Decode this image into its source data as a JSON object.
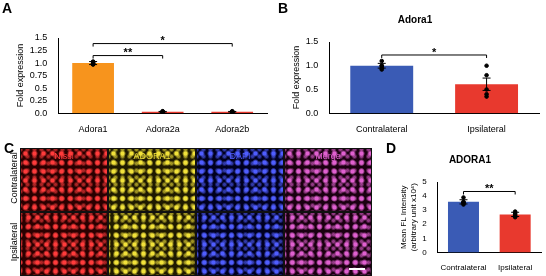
{
  "chart_data": [
    {
      "panel": "A",
      "type": "bar",
      "y_label": "Fold expression",
      "categories": [
        "Adora1",
        "Adora2a",
        "Adora2b"
      ],
      "values": [
        1.0,
        0.03,
        0.03
      ],
      "errors": [
        0.03,
        0.005,
        0.005
      ],
      "points": [
        [
          0.97,
          1.0,
          1.02,
          0.99,
          1.03,
          0.98
        ],
        [
          0.03,
          0.02,
          0.03,
          0.04,
          0.03,
          0.02
        ],
        [
          0.02,
          0.03,
          0.04,
          0.03,
          0.02,
          0.03
        ]
      ],
      "colors": [
        "#f7941d",
        "#e8392e",
        "#e8392e"
      ],
      "ylim": [
        0,
        1.5
      ],
      "yticks": [
        {
          "value": 0,
          "label": "0.0"
        },
        0.25,
        0.5,
        0.75,
        {
          "value": 1,
          "label": "1.0"
        },
        1.25,
        1.5
      ],
      "grid": false,
      "annotations": [
        {
          "from": "Adora1",
          "to": "Adora2a",
          "text": "**"
        },
        {
          "from": "Adora1",
          "to": "Adora2b",
          "text": "*"
        }
      ]
    },
    {
      "panel": "B",
      "type": "bar",
      "title": "Adora1",
      "y_label": "Fold expression",
      "categories": [
        "Contralateral",
        "Ipsilateral"
      ],
      "values": [
        1.0,
        0.61
      ],
      "errors": [
        0.05,
        0.13
      ],
      "points": [
        [
          1.1,
          1.0,
          0.95,
          1.0,
          0.92
        ],
        [
          1.0,
          0.8,
          0.5,
          0.4,
          0.35
        ]
      ],
      "colors": [
        "#3a5bb5",
        "#e8392e"
      ],
      "ylim": [
        0,
        1.5
      ],
      "yticks": [
        {
          "value": 0,
          "label": "0.0"
        },
        0.5,
        {
          "value": 1,
          "label": "1.0"
        },
        1.5
      ],
      "grid": false,
      "annotations": [
        {
          "from": "Contralateral",
          "to": "Ipsilateral",
          "text": "*"
        }
      ]
    },
    {
      "panel": "D",
      "type": "bar",
      "title": "ADORA1",
      "y_label": [
        "Mean FL Intensity",
        "(arbitrary unit x10⁴)"
      ],
      "categories": [
        "Contralateral",
        "Ipsilateral"
      ],
      "values": [
        3.59,
        2.7
      ],
      "errors": [
        0.15,
        0.15
      ],
      "points": [
        [
          3.9,
          3.5,
          3.4,
          3.6,
          3.55
        ],
        [
          2.9,
          2.7,
          2.5,
          2.8,
          2.6
        ]
      ],
      "colors": [
        "#3a5bb5",
        "#e8392e"
      ],
      "ylim": [
        0,
        5
      ],
      "yticks": [
        0,
        1,
        2,
        3,
        4,
        5
      ],
      "grid": false,
      "annotations": [
        {
          "from": "Contralateral",
          "to": "Ipsilateral",
          "text": "**"
        }
      ]
    }
  ],
  "image_panel": {
    "panel": "C",
    "channels": [
      {
        "name": "Nissl",
        "color": "#ff3b3b"
      },
      {
        "name": "ADORA1",
        "color": "#f2e23a"
      },
      {
        "name": "DAPI",
        "color": "#4f5dff"
      },
      {
        "name": "Merge",
        "color": "#e060d0"
      }
    ],
    "rows": [
      "Contralateral",
      "Ipsilateral"
    ]
  }
}
